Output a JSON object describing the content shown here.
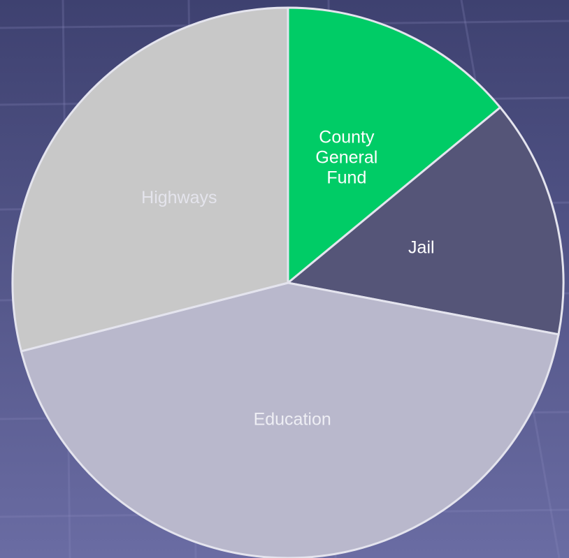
{
  "chart_data": {
    "type": "pie",
    "categories": [
      "County General Fund",
      "Jail",
      "Education",
      "Highways"
    ],
    "values": [
      14,
      14,
      43,
      29
    ],
    "colors": [
      "#00cc66",
      "#555578",
      "#b9b8cc",
      "#c8c8c8"
    ],
    "label_colors": [
      "#ffffff",
      "#ffffff",
      "#eeeef4",
      "#e4e4ec"
    ],
    "start_angle": 0,
    "direction": "clockwise"
  }
}
